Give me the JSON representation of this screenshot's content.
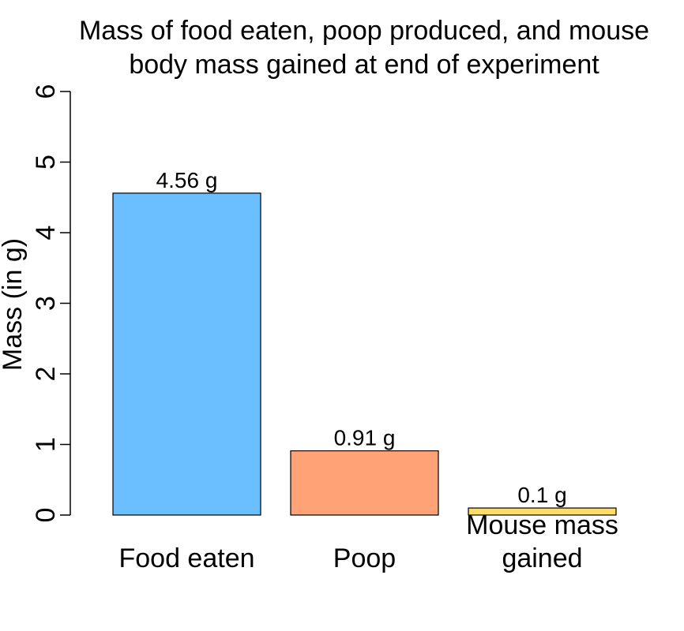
{
  "chart_data": {
    "type": "bar",
    "title_lines": [
      "Mass of food eaten, poop produced, and mouse",
      "body mass gained at end of experiment"
    ],
    "xlabel": "",
    "ylabel": "Mass (in g)",
    "ylim": [
      0,
      6
    ],
    "y_ticks": [
      0,
      1,
      2,
      3,
      4,
      5,
      6
    ],
    "y_tick_labels": [
      "0",
      "1",
      "2",
      "3",
      "4",
      "5",
      "6"
    ],
    "grid": false,
    "categories": [
      [
        "Food eaten"
      ],
      [
        "Poop"
      ],
      [
        "Mouse mass",
        "gained"
      ]
    ],
    "values": [
      4.56,
      0.91,
      0.1
    ],
    "value_labels": [
      "4.56 g",
      "0.91 g",
      "0.1 g"
    ],
    "colors": [
      "#6bbfff",
      "#ffa276",
      "#ffdc63"
    ]
  }
}
